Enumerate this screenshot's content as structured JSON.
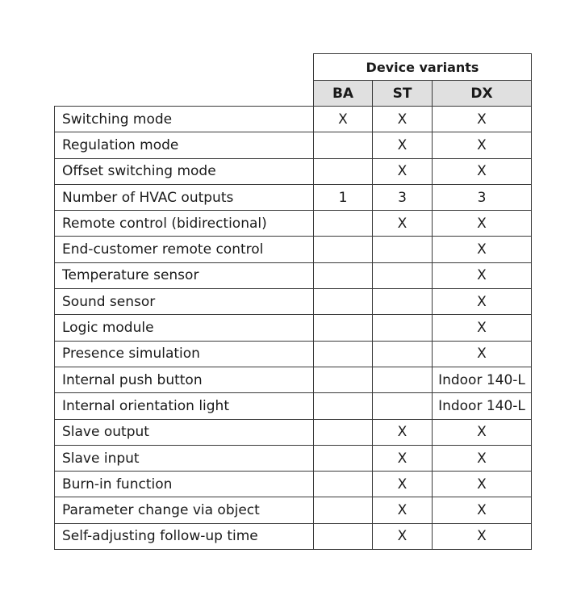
{
  "table": {
    "group_header": "Device variants",
    "columns": [
      "BA",
      "ST",
      "DX"
    ],
    "rows": [
      {
        "feature": "Switching mode",
        "values": [
          "X",
          "X",
          "X"
        ]
      },
      {
        "feature": "Regulation mode",
        "values": [
          "",
          "X",
          "X"
        ]
      },
      {
        "feature": "Offset switching mode",
        "values": [
          "",
          "X",
          "X"
        ]
      },
      {
        "feature": "Number of HVAC outputs",
        "values": [
          "1",
          "3",
          "3"
        ]
      },
      {
        "feature": "Remote control (bidirectional)",
        "values": [
          "",
          "X",
          "X"
        ]
      },
      {
        "feature": "End-customer remote control",
        "values": [
          "",
          "",
          "X"
        ]
      },
      {
        "feature": "Temperature sensor",
        "values": [
          "",
          "",
          "X"
        ]
      },
      {
        "feature": "Sound sensor",
        "values": [
          "",
          "",
          "X"
        ]
      },
      {
        "feature": "Logic module",
        "values": [
          "",
          "",
          "X"
        ]
      },
      {
        "feature": "Presence simulation",
        "values": [
          "",
          "",
          "X"
        ]
      },
      {
        "feature": "Internal push button",
        "values": [
          "",
          "",
          "Indoor 140-L"
        ]
      },
      {
        "feature": "Internal orientation light",
        "values": [
          "",
          "",
          "Indoor 140-L"
        ]
      },
      {
        "feature": "Slave output",
        "values": [
          "",
          "X",
          "X"
        ]
      },
      {
        "feature": "Slave input",
        "values": [
          "",
          "X",
          "X"
        ]
      },
      {
        "feature": "Burn-in function",
        "values": [
          "",
          "X",
          "X"
        ]
      },
      {
        "feature": "Parameter change via object",
        "values": [
          "",
          "X",
          "X"
        ]
      },
      {
        "feature": "Self-adjusting follow-up time",
        "values": [
          "",
          "X",
          "X"
        ]
      }
    ]
  }
}
